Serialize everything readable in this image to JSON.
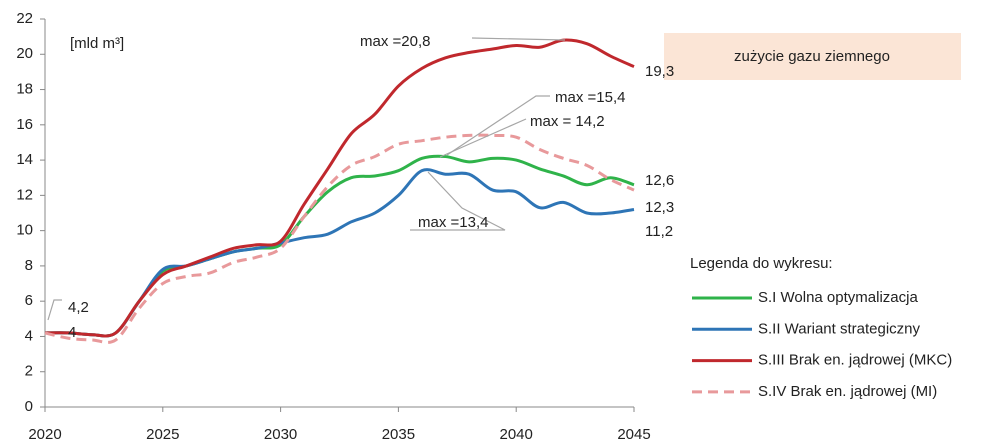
{
  "chart_data": {
    "type": "line",
    "unit_label": "[mld m³]",
    "box_title": "zużycie gazu ziemnego",
    "legend_title": "Legenda do wykresu:",
    "x": [
      2020,
      2021,
      2022,
      2023,
      2024,
      2025,
      2026,
      2027,
      2028,
      2029,
      2030,
      2031,
      2032,
      2033,
      2034,
      2035,
      2036,
      2037,
      2038,
      2039,
      2040,
      2041,
      2042,
      2043,
      2044,
      2045
    ],
    "xlim": [
      2020,
      2045
    ],
    "xticks": [
      2020,
      2025,
      2030,
      2035,
      2040,
      2045
    ],
    "ylim": [
      0,
      22
    ],
    "yticks": [
      0,
      2,
      4,
      6,
      8,
      10,
      12,
      14,
      16,
      18,
      20,
      22
    ],
    "grid": false,
    "series": [
      {
        "name": "S.I Wolna optymalizacja",
        "color": "#2fb34a",
        "dashed": false,
        "values": [
          4.2,
          4.2,
          4.1,
          4.2,
          6.0,
          7.7,
          8.0,
          8.4,
          8.8,
          9.0,
          9.2,
          10.8,
          12.2,
          13.0,
          13.1,
          13.4,
          14.1,
          14.2,
          13.9,
          14.1,
          14.0,
          13.5,
          13.1,
          12.6,
          13.0,
          12.6
        ]
      },
      {
        "name": "S.II Wariant strategiczny",
        "color": "#2e75b6",
        "dashed": false,
        "values": [
          4.2,
          4.2,
          4.1,
          4.2,
          6.0,
          7.8,
          8.0,
          8.4,
          8.8,
          9.0,
          9.3,
          9.6,
          9.8,
          10.5,
          11.0,
          12.0,
          13.4,
          13.2,
          13.2,
          12.3,
          12.2,
          11.3,
          11.6,
          11.0,
          11.0,
          11.2
        ]
      },
      {
        "name": "S.III Brak en. jądrowej (MKC)",
        "color": "#c0282d",
        "dashed": false,
        "values": [
          4.2,
          4.2,
          4.1,
          4.2,
          6.0,
          7.5,
          8.0,
          8.5,
          9.0,
          9.2,
          9.4,
          11.5,
          13.5,
          15.5,
          16.6,
          18.2,
          19.2,
          19.8,
          20.1,
          20.3,
          20.5,
          20.4,
          20.8,
          20.6,
          19.9,
          19.3
        ]
      },
      {
        "name": "S.IV Brak en. jądrowej (MI)",
        "color": "#e8999b",
        "dashed": true,
        "values": [
          4.2,
          3.9,
          3.8,
          3.8,
          5.6,
          7.0,
          7.4,
          7.6,
          8.2,
          8.5,
          9.0,
          10.8,
          12.5,
          13.7,
          14.2,
          14.9,
          15.1,
          15.3,
          15.4,
          15.4,
          15.3,
          14.6,
          14.1,
          13.7,
          12.9,
          12.3
        ]
      }
    ],
    "annotations": [
      {
        "text": "max =20,8",
        "color": "#c0282d"
      },
      {
        "text": "max =15,4",
        "color": "#e8999b"
      },
      {
        "text": "max = 14,2",
        "color": "#2fb34a"
      },
      {
        "text": "max =13,4",
        "color": "#2e75b6"
      },
      {
        "text": "19,3",
        "color": "#c0282d"
      },
      {
        "text": "12,6",
        "color": "#2fb34a"
      },
      {
        "text": "12,3",
        "color": "#e8999b"
      },
      {
        "text": "11,2",
        "color": "#2e75b6"
      },
      {
        "text": "4,2",
        "color": "#595959"
      },
      {
        "text": "4",
        "color": "#595959"
      }
    ]
  }
}
